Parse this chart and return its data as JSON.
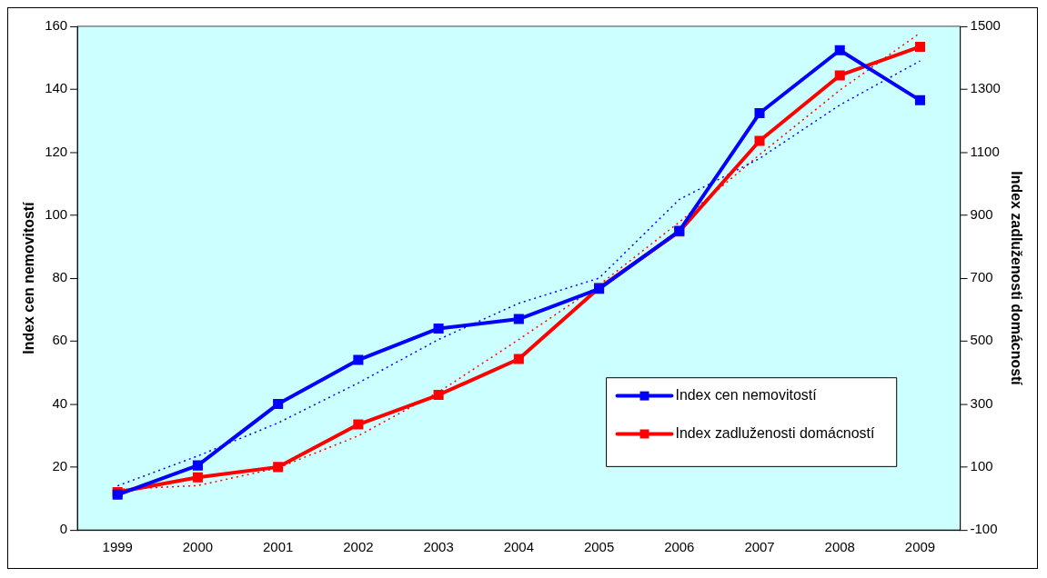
{
  "chart_data": {
    "type": "line",
    "ylabel": "Index cen nemovitostí",
    "y2label": "Index zadluženosti domácností",
    "categories": [
      "1999",
      "2000",
      "2001",
      "2002",
      "2003",
      "2004",
      "2005",
      "2006",
      "2007",
      "2008",
      "2009"
    ],
    "series": [
      {
        "name": "Index cen nemovitostí",
        "color": "#0000ff",
        "values": [
          11.2,
          20.5,
          40,
          54,
          64,
          67,
          76.6,
          95,
          132.4,
          152.4,
          136.5
        ],
        "marker": "square",
        "line_style": "solid"
      },
      {
        "name": "Index zadluženosti domácností",
        "color": "#ff0000",
        "axis": "y2",
        "values": [
          20,
          67,
          100,
          235,
          329,
          443,
          669,
          848,
          1136,
          1344,
          1435
        ],
        "marker": "square",
        "line_style": "solid"
      },
      {
        "color": "#0000ff",
        "values": [
          14,
          23.5,
          34,
          46.7,
          60.5,
          72,
          80,
          105,
          118,
          135,
          149
        ],
        "marker": "none",
        "line_style": "dotted"
      },
      {
        "color": "#ff0000",
        "axis": "y2",
        "values": [
          29,
          41,
          97,
          199,
          338,
          505,
          678,
          878,
          1092,
          1297,
          1479
        ],
        "marker": "none",
        "line_style": "dotted"
      }
    ],
    "ylim": [
      0,
      160
    ],
    "yticks": [
      0,
      20,
      40,
      60,
      80,
      100,
      120,
      140,
      160
    ],
    "y2lim": [
      -100,
      1500
    ],
    "y2ticks": [
      -100,
      100,
      300,
      500,
      700,
      900,
      1100,
      1300,
      1500
    ],
    "grid": false,
    "legend": "bottom right"
  }
}
